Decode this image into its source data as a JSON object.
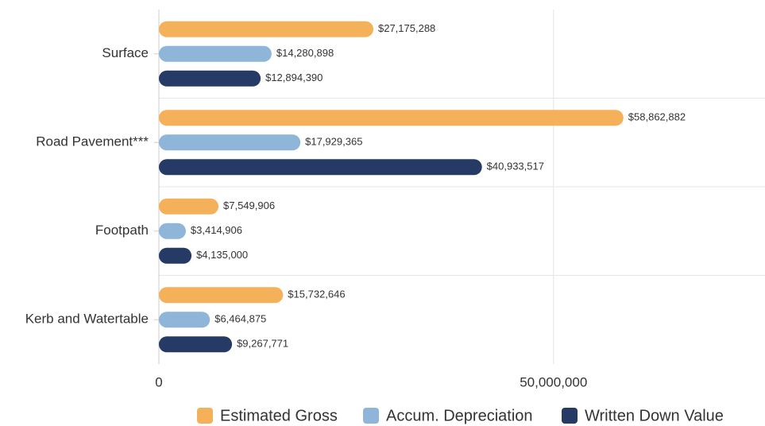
{
  "chart_data": {
    "type": "hbar",
    "categories": [
      "Surface",
      "Road Pavement***",
      "Footpath",
      "Kerb and Watertable"
    ],
    "series": [
      {
        "name": "Estimated Gross",
        "color": "#f5b05a",
        "values": [
          27175288,
          58862882,
          7549906,
          15732646
        ],
        "value_labels": [
          "$27,175,288",
          "$58,862,882",
          "$7,549,906",
          "$15,732,646"
        ]
      },
      {
        "name": "Accum. Depreciation",
        "color": "#8fb6d8",
        "values": [
          14280898,
          17929365,
          3414906,
          6464875
        ],
        "value_labels": [
          "$14,280,898",
          "$17,929,365",
          "$3,414,906",
          "$6,464,875"
        ]
      },
      {
        "name": "Written Down Value",
        "color": "#263a66",
        "values": [
          12894390,
          40933517,
          4135000,
          9267771
        ],
        "value_labels": [
          "$12,894,390",
          "$40,933,517",
          "$4,135,000",
          "$9,267,771"
        ]
      }
    ],
    "xlim": [
      0,
      77000000
    ],
    "xticks": [
      0,
      {
        "value": 50000000,
        "label": "50,000,000"
      }
    ],
    "grid": true,
    "legend": "bottom"
  }
}
